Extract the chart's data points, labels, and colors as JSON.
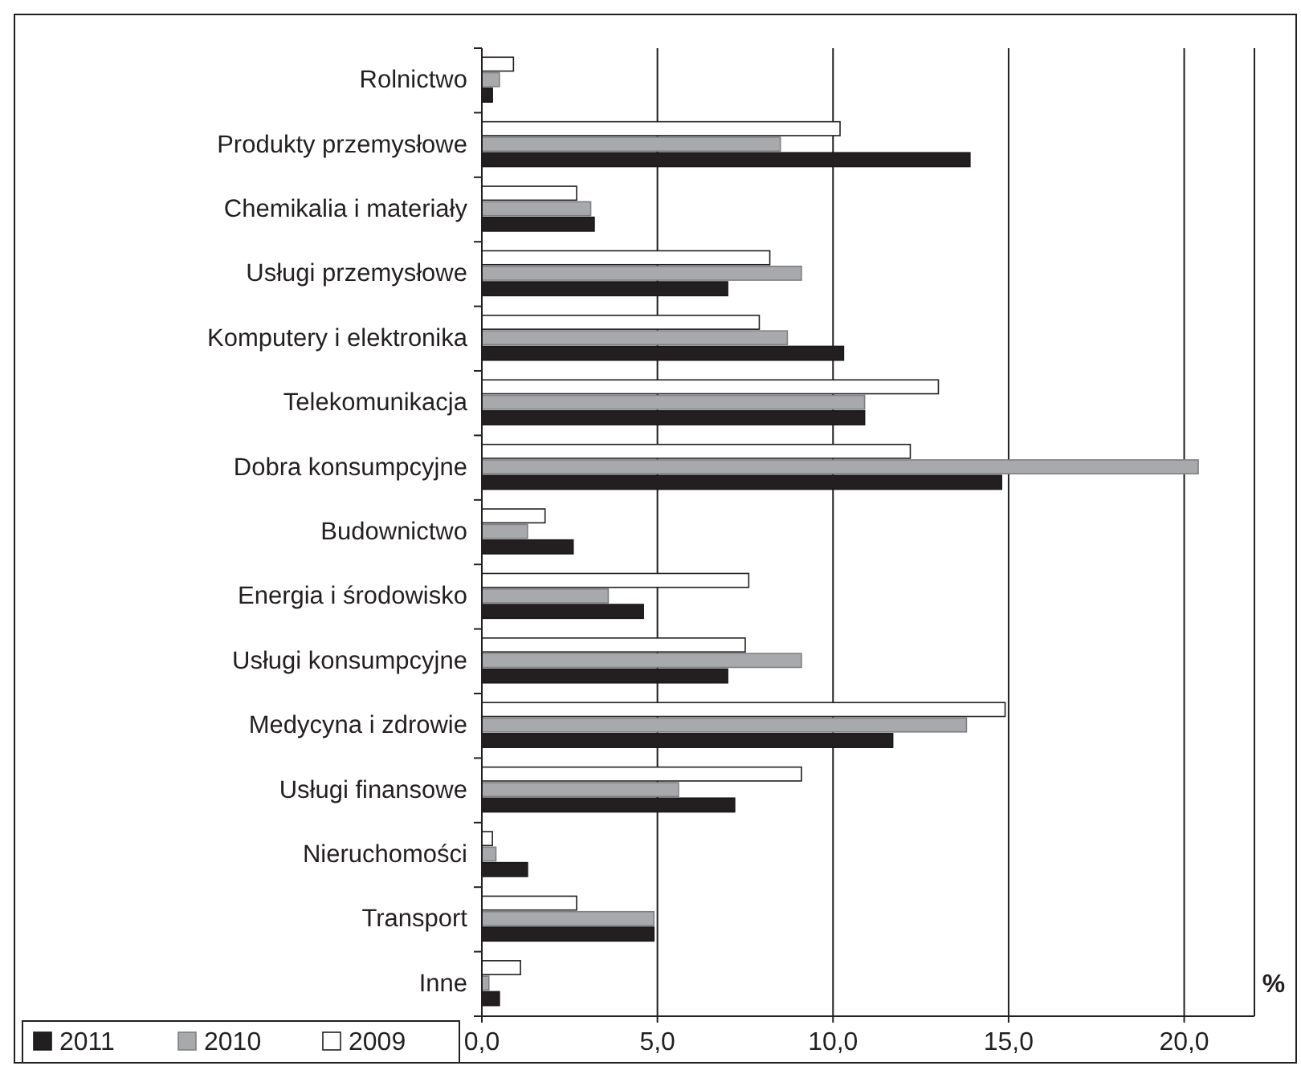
{
  "chart_data": {
    "type": "bar",
    "orientation": "horizontal",
    "xlabel": "%",
    "categories": [
      "Rolnictwo",
      "Produkty przemysłowe",
      "Chemikalia i materiały",
      "Usługi przemysłowe",
      "Komputery i elektronika",
      "Telekomunikacja",
      "Dobra konsumpcyjne",
      "Budownictwo",
      "Energia i środowisko",
      "Usługi konsumpcyjne",
      "Medycyna i zdrowie",
      "Usługi finansowe",
      "Nieruchomości",
      "Transport",
      "Inne"
    ],
    "series": [
      {
        "name": "2011",
        "color": "#231f20",
        "values": [
          0.3,
          13.9,
          3.2,
          7.0,
          10.3,
          10.9,
          14.8,
          2.6,
          4.6,
          7.0,
          11.7,
          7.2,
          1.3,
          4.9,
          0.5
        ]
      },
      {
        "name": "2010",
        "color": "#a7a9ac",
        "values": [
          0.5,
          8.5,
          3.1,
          9.1,
          8.7,
          10.9,
          20.4,
          1.3,
          3.6,
          9.1,
          13.8,
          5.6,
          0.4,
          4.9,
          0.2
        ]
      },
      {
        "name": "2009",
        "color": "#ffffff",
        "values": [
          0.9,
          10.2,
          2.7,
          8.2,
          7.9,
          13.0,
          12.2,
          1.8,
          7.6,
          7.5,
          14.9,
          9.1,
          0.3,
          2.7,
          1.1
        ]
      }
    ],
    "xlim": [
      0,
      22
    ],
    "xticks": [
      {
        "value": 0,
        "label": "0,0"
      },
      {
        "value": 5,
        "label": "5,0"
      },
      {
        "value": 10,
        "label": "10,0"
      },
      {
        "value": 15,
        "label": "15,0"
      },
      {
        "value": 20,
        "label": "20,0"
      }
    ],
    "grid": "x",
    "legend": "bottom left"
  }
}
